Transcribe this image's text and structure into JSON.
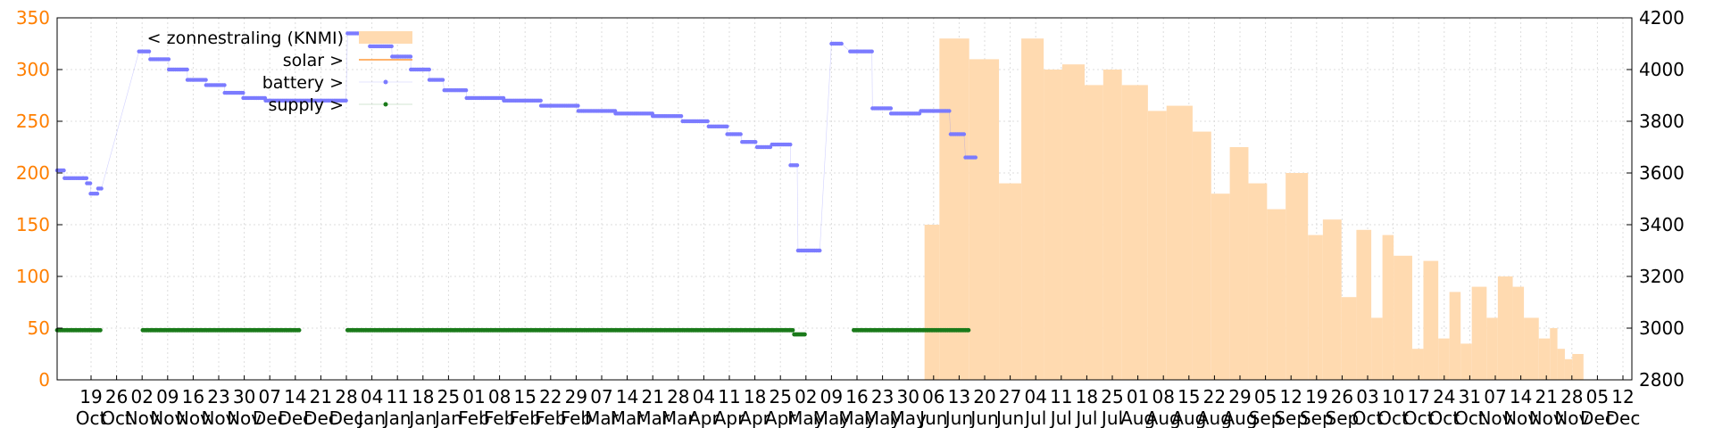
{
  "chart_data": {
    "type": "line",
    "left_axis": {
      "ticks": [
        "0",
        "50",
        "100",
        "150",
        "200",
        "250",
        "300",
        "350"
      ],
      "min": 0,
      "max": 350
    },
    "right_axis": {
      "ticks": [
        "2800",
        "3000",
        "3200",
        "3400",
        "3600",
        "3800",
        "4000",
        "4200"
      ],
      "min": 2800,
      "max": 4200
    },
    "x_range_days": [
      0,
      423
    ],
    "x_ticks": [
      {
        "day": "19",
        "month": "Oct"
      },
      {
        "day": "26",
        "month": "Oct"
      },
      {
        "day": "02",
        "month": "Nov"
      },
      {
        "day": "09",
        "month": "Nov"
      },
      {
        "day": "16",
        "month": "Nov"
      },
      {
        "day": "23",
        "month": "Nov"
      },
      {
        "day": "30",
        "month": "Nov"
      },
      {
        "day": "07",
        "month": "Dec"
      },
      {
        "day": "14",
        "month": "Dec"
      },
      {
        "day": "21",
        "month": "Dec"
      },
      {
        "day": "28",
        "month": "Dec"
      },
      {
        "day": "04",
        "month": "Jan"
      },
      {
        "day": "11",
        "month": "Jan"
      },
      {
        "day": "18",
        "month": "Jan"
      },
      {
        "day": "25",
        "month": "Jan"
      },
      {
        "day": "01",
        "month": "Feb"
      },
      {
        "day": "08",
        "month": "Feb"
      },
      {
        "day": "15",
        "month": "Feb"
      },
      {
        "day": "22",
        "month": "Feb"
      },
      {
        "day": "29",
        "month": "Feb"
      },
      {
        "day": "07",
        "month": "Mar"
      },
      {
        "day": "14",
        "month": "Mar"
      },
      {
        "day": "21",
        "month": "Mar"
      },
      {
        "day": "28",
        "month": "Mar"
      },
      {
        "day": "04",
        "month": "Apr"
      },
      {
        "day": "11",
        "month": "Apr"
      },
      {
        "day": "18",
        "month": "Apr"
      },
      {
        "day": "25",
        "month": "Apr"
      },
      {
        "day": "02",
        "month": "May"
      },
      {
        "day": "09",
        "month": "May"
      },
      {
        "day": "16",
        "month": "May"
      },
      {
        "day": "23",
        "month": "May"
      },
      {
        "day": "30",
        "month": "May"
      },
      {
        "day": "06",
        "month": "Jun"
      },
      {
        "day": "13",
        "month": "Jun"
      },
      {
        "day": "20",
        "month": "Jun"
      },
      {
        "day": "27",
        "month": "Jun"
      },
      {
        "day": "04",
        "month": "Jul"
      },
      {
        "day": "11",
        "month": "Jul"
      },
      {
        "day": "18",
        "month": "Jul"
      },
      {
        "day": "25",
        "month": "Jul"
      },
      {
        "day": "01",
        "month": "Aug"
      },
      {
        "day": "08",
        "month": "Aug"
      },
      {
        "day": "15",
        "month": "Aug"
      },
      {
        "day": "22",
        "month": "Aug"
      },
      {
        "day": "29",
        "month": "Aug"
      },
      {
        "day": "05",
        "month": "Sep"
      },
      {
        "day": "12",
        "month": "Sep"
      },
      {
        "day": "19",
        "month": "Sep"
      },
      {
        "day": "26",
        "month": "Sep"
      },
      {
        "day": "03",
        "month": "Oct"
      },
      {
        "day": "10",
        "month": "Oct"
      },
      {
        "day": "17",
        "month": "Oct"
      },
      {
        "day": "24",
        "month": "Oct"
      },
      {
        "day": "31",
        "month": "Oct"
      },
      {
        "day": "07",
        "month": "Nov"
      },
      {
        "day": "14",
        "month": "Nov"
      },
      {
        "day": "21",
        "month": "Nov"
      },
      {
        "day": "28",
        "month": "Nov"
      },
      {
        "day": "05",
        "month": "Dec"
      },
      {
        "day": "12",
        "month": "Dec"
      }
    ],
    "legend": [
      {
        "label": "< zonnestraling (KNMI)",
        "color": "#ffdab0",
        "kind": "area"
      },
      {
        "label": "solar >",
        "color": "#ff9a3c",
        "kind": "line"
      },
      {
        "label": "battery >",
        "color": "#7b7bff",
        "kind": "points"
      },
      {
        "label": "supply >",
        "color": "#1a7a1a",
        "kind": "points"
      }
    ],
    "series": [
      {
        "name": "< zonnestraling (KNMI)",
        "axis": "left",
        "color": "#ffdab0",
        "segments": [
          {
            "from": 233,
            "to": 237,
            "value": 150
          },
          {
            "from": 237,
            "to": 245,
            "value": 330
          },
          {
            "from": 245,
            "to": 253,
            "value": 310
          },
          {
            "from": 253,
            "to": 259,
            "value": 190
          },
          {
            "from": 259,
            "to": 265,
            "value": 330
          },
          {
            "from": 265,
            "to": 270,
            "value": 300
          },
          {
            "from": 270,
            "to": 276,
            "value": 305
          },
          {
            "from": 276,
            "to": 281,
            "value": 285
          },
          {
            "from": 281,
            "to": 286,
            "value": 300
          },
          {
            "from": 286,
            "to": 293,
            "value": 285
          },
          {
            "from": 293,
            "to": 298,
            "value": 260
          },
          {
            "from": 298,
            "to": 305,
            "value": 265
          },
          {
            "from": 305,
            "to": 310,
            "value": 240
          },
          {
            "from": 310,
            "to": 315,
            "value": 180
          },
          {
            "from": 315,
            "to": 320,
            "value": 225
          },
          {
            "from": 320,
            "to": 325,
            "value": 190
          },
          {
            "from": 325,
            "to": 330,
            "value": 165
          },
          {
            "from": 330,
            "to": 336,
            "value": 200
          },
          {
            "from": 336,
            "to": 340,
            "value": 140
          },
          {
            "from": 340,
            "to": 345,
            "value": 155
          },
          {
            "from": 345,
            "to": 349,
            "value": 80
          },
          {
            "from": 349,
            "to": 353,
            "value": 145
          },
          {
            "from": 353,
            "to": 356,
            "value": 60
          },
          {
            "from": 356,
            "to": 359,
            "value": 140
          },
          {
            "from": 359,
            "to": 364,
            "value": 120
          },
          {
            "from": 364,
            "to": 367,
            "value": 30
          },
          {
            "from": 367,
            "to": 371,
            "value": 115
          },
          {
            "from": 371,
            "to": 374,
            "value": 40
          },
          {
            "from": 374,
            "to": 377,
            "value": 85
          },
          {
            "from": 377,
            "to": 380,
            "value": 35
          },
          {
            "from": 380,
            "to": 384,
            "value": 90
          },
          {
            "from": 384,
            "to": 387,
            "value": 60
          },
          {
            "from": 387,
            "to": 391,
            "value": 100
          },
          {
            "from": 391,
            "to": 394,
            "value": 90
          },
          {
            "from": 394,
            "to": 398,
            "value": 60
          },
          {
            "from": 398,
            "to": 401,
            "value": 40
          },
          {
            "from": 401,
            "to": 403,
            "value": 50
          },
          {
            "from": 403,
            "to": 405,
            "value": 30
          },
          {
            "from": 405,
            "to": 407,
            "value": 20
          },
          {
            "from": 407,
            "to": 410,
            "value": 25
          }
        ]
      },
      {
        "name": "battery >",
        "axis": "right",
        "color": "#7b7bff",
        "runs": [
          {
            "from": 0,
            "to": 2,
            "value": 3610
          },
          {
            "from": 2,
            "to": 7,
            "value": 3580
          },
          {
            "from": 7,
            "to": 8,
            "value": 3580
          },
          {
            "from": 8,
            "to": 9,
            "value": 3560
          },
          {
            "from": 9,
            "to": 11,
            "value": 3520
          },
          {
            "from": 11,
            "to": 12,
            "value": 3540
          },
          {
            "from": 22,
            "to": 25,
            "value": 4070
          },
          {
            "from": 25,
            "to": 30,
            "value": 4040
          },
          {
            "from": 30,
            "to": 35,
            "value": 4000
          },
          {
            "from": 35,
            "to": 40,
            "value": 3960
          },
          {
            "from": 40,
            "to": 45,
            "value": 3940
          },
          {
            "from": 45,
            "to": 50,
            "value": 3910
          },
          {
            "from": 50,
            "to": 56,
            "value": 3890
          },
          {
            "from": 56,
            "to": 65,
            "value": 3880
          },
          {
            "from": 65,
            "to": 78,
            "value": 3880
          },
          {
            "from": 78,
            "to": 84,
            "value": 4140
          },
          {
            "from": 84,
            "to": 90,
            "value": 4090
          },
          {
            "from": 90,
            "to": 95,
            "value": 4050
          },
          {
            "from": 95,
            "to": 100,
            "value": 4000
          },
          {
            "from": 100,
            "to": 104,
            "value": 3960
          },
          {
            "from": 104,
            "to": 110,
            "value": 3920
          },
          {
            "from": 110,
            "to": 120,
            "value": 3890
          },
          {
            "from": 120,
            "to": 130,
            "value": 3880
          },
          {
            "from": 130,
            "to": 140,
            "value": 3860
          },
          {
            "from": 140,
            "to": 150,
            "value": 3840
          },
          {
            "from": 150,
            "to": 160,
            "value": 3830
          },
          {
            "from": 160,
            "to": 168,
            "value": 3820
          },
          {
            "from": 168,
            "to": 175,
            "value": 3800
          },
          {
            "from": 175,
            "to": 180,
            "value": 3780
          },
          {
            "from": 180,
            "to": 184,
            "value": 3750
          },
          {
            "from": 184,
            "to": 188,
            "value": 3720
          },
          {
            "from": 188,
            "to": 192,
            "value": 3700
          },
          {
            "from": 192,
            "to": 197,
            "value": 3710
          },
          {
            "from": 197,
            "to": 199,
            "value": 3630
          },
          {
            "from": 199,
            "to": 205,
            "value": 3300
          },
          {
            "from": 208,
            "to": 211,
            "value": 4100
          },
          {
            "from": 213,
            "to": 219,
            "value": 4070
          },
          {
            "from": 219,
            "to": 224,
            "value": 3850
          },
          {
            "from": 224,
            "to": 232,
            "value": 3830
          },
          {
            "from": 232,
            "to": 240,
            "value": 3840
          },
          {
            "from": 240,
            "to": 244,
            "value": 3750
          },
          {
            "from": 244,
            "to": 247,
            "value": 3660
          }
        ]
      },
      {
        "name": "supply >",
        "axis": "left",
        "color": "#1a7a1a",
        "runs": [
          {
            "from": 0,
            "to": 12,
            "value": 48
          },
          {
            "from": 23,
            "to": 65,
            "value": 48
          },
          {
            "from": 78,
            "to": 198,
            "value": 48
          },
          {
            "from": 198,
            "to": 201,
            "value": 44
          },
          {
            "from": 214,
            "to": 245,
            "value": 48
          }
        ]
      }
    ]
  },
  "colors": {
    "left_axis": "#ff7f00",
    "grid": "#dddddd",
    "axis": "#000000"
  }
}
